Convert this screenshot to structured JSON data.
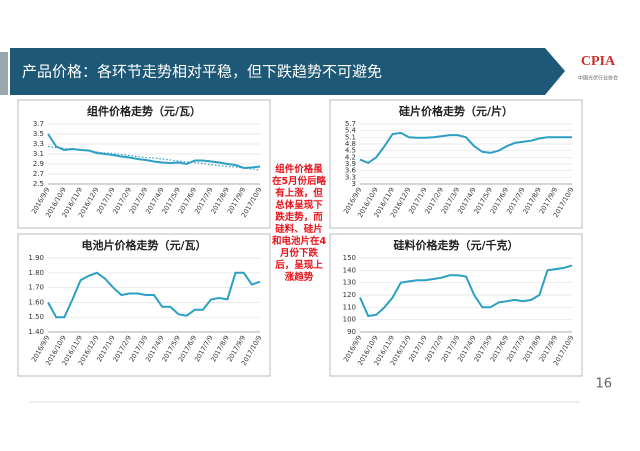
{
  "header": {
    "title": "产品价格：各环节走势相对平稳，但下跌趋势不可避免"
  },
  "logo": {
    "text": "CPIA",
    "subtitle": "中国光伏行业协会"
  },
  "annotation": "组件价格虽在5月份后略有上涨，但总体呈现下跌走势，而硅料、硅片和电池片在4月份下跌后，呈现上涨趋势",
  "page_number": "16",
  "chart_data": [
    {
      "type": "line",
      "title": "组件价格走势（元/瓦）",
      "grid": true,
      "categories": [
        "2016/9/9",
        null,
        "2016/10/9",
        null,
        "2016/11/9",
        null,
        "2016/12/9",
        null,
        "2017/1/9",
        null,
        "2017/2/9",
        null,
        "2017/3/9",
        null,
        "2017/4/9",
        null,
        "2017/5/9",
        null,
        "2017/6/9",
        null,
        "2017/7/9",
        null,
        "2017/8/9",
        null,
        "2017/9/9",
        null,
        "2017/10/9"
      ],
      "series": [
        {
          "color": "#2e9fc4",
          "values": [
            3.5,
            3.25,
            3.18,
            3.2,
            3.18,
            3.17,
            3.12,
            3.1,
            3.08,
            3.05,
            3.03,
            3.0,
            2.98,
            2.95,
            2.93,
            2.92,
            2.93,
            2.9,
            2.97,
            2.97,
            2.95,
            2.93,
            2.9,
            2.88,
            2.82,
            2.83,
            2.85
          ]
        },
        {
          "color": "#2e9fc4",
          "style": "dotted",
          "values": [
            3.25,
            3.23,
            3.21,
            3.2,
            3.18,
            3.16,
            3.14,
            3.12,
            3.11,
            3.09,
            3.07,
            3.05,
            3.03,
            3.02,
            3.0,
            2.98,
            2.96,
            2.94,
            2.93,
            2.91,
            2.89,
            2.87,
            2.85,
            2.84,
            2.82,
            2.8,
            2.78
          ]
        }
      ],
      "ylim": [
        2.5,
        3.7
      ],
      "yticks": [
        2.5,
        2.7,
        2.9,
        3.1,
        3.3,
        3.5,
        3.7
      ]
    },
    {
      "type": "line",
      "title": "硅片价格走势（元/片）",
      "grid": true,
      "categories": [
        "2016/9/9",
        null,
        "2016/10/9",
        null,
        "2016/11/9",
        null,
        "2016/12/9",
        null,
        "2017/1/9",
        null,
        "2017/2/9",
        null,
        "2017/3/9",
        null,
        "2017/4/9",
        null,
        "2017/5/9",
        null,
        "2017/6/9",
        null,
        "2017/7/9",
        null,
        "2017/8/9",
        null,
        "2017/9/9",
        null,
        "2017/10/9"
      ],
      "series": [
        {
          "color": "#2e9fc4",
          "values": [
            4.1,
            3.95,
            4.2,
            4.7,
            5.25,
            5.3,
            5.1,
            5.08,
            5.08,
            5.1,
            5.15,
            5.2,
            5.2,
            5.1,
            4.7,
            4.45,
            4.4,
            4.5,
            4.7,
            4.85,
            4.9,
            4.95,
            5.05,
            5.1,
            5.1,
            5.1,
            5.1
          ]
        }
      ],
      "ylim": [
        3,
        5.7
      ],
      "yticks": [
        3,
        3.3,
        3.6,
        3.9,
        4.2,
        4.5,
        4.8,
        5.1,
        5.4,
        5.7
      ]
    },
    {
      "type": "line",
      "title": "电池片价格走势（元/瓦）",
      "grid": true,
      "categories": [
        "2016/9/9",
        null,
        "2016/10/9",
        null,
        "2016/11/9",
        null,
        "2016/12/9",
        null,
        "2017/1/9",
        null,
        "2017/2/9",
        null,
        "2017/3/9",
        null,
        "2017/4/9",
        null,
        "2017/5/9",
        null,
        "2017/6/9",
        null,
        "2017/7/9",
        null,
        "2017/8/9",
        null,
        "2017/9/9",
        null,
        "2017/10/9"
      ],
      "series": [
        {
          "color": "#2e9fc4",
          "values": [
            1.6,
            1.5,
            1.5,
            1.62,
            1.75,
            1.78,
            1.8,
            1.76,
            1.7,
            1.65,
            1.66,
            1.66,
            1.65,
            1.65,
            1.57,
            1.57,
            1.52,
            1.51,
            1.55,
            1.55,
            1.62,
            1.63,
            1.62,
            1.8,
            1.8,
            1.72,
            1.74
          ]
        }
      ],
      "ylim": [
        1.4,
        1.9
      ],
      "yticks": [
        {
          "value": 1.4,
          "label": "1.40"
        },
        {
          "value": 1.5,
          "label": "1.50"
        },
        {
          "value": 1.6,
          "label": "1.60"
        },
        {
          "value": 1.7,
          "label": "1.70"
        },
        {
          "value": 1.8,
          "label": "1.80"
        },
        {
          "value": 1.9,
          "label": "1.90"
        }
      ]
    },
    {
      "type": "line",
      "title": "硅料价格走势（元/千克）",
      "grid": true,
      "categories": [
        "2016/9/9",
        null,
        "2016/10/9",
        null,
        "2016/11/9",
        null,
        "2016/12/9",
        null,
        "2017/1/9",
        null,
        "2017/2/9",
        null,
        "2017/3/9",
        null,
        "2017/4/9",
        null,
        "2017/5/9",
        null,
        "2017/6/9",
        null,
        "2017/7/9",
        null,
        "2017/8/9",
        null,
        "2017/9/9",
        null,
        "2017/10/9"
      ],
      "series": [
        {
          "color": "#2e9fc4",
          "values": [
            118,
            103,
            104,
            110,
            118,
            130,
            131,
            132,
            132,
            133,
            134,
            136,
            136,
            135,
            120,
            110,
            110,
            114,
            115,
            116,
            115,
            116,
            120,
            140,
            141,
            142,
            144
          ]
        }
      ],
      "ylim": [
        90,
        150
      ],
      "yticks": [
        90,
        100,
        110,
        120,
        130,
        140,
        150
      ]
    }
  ]
}
